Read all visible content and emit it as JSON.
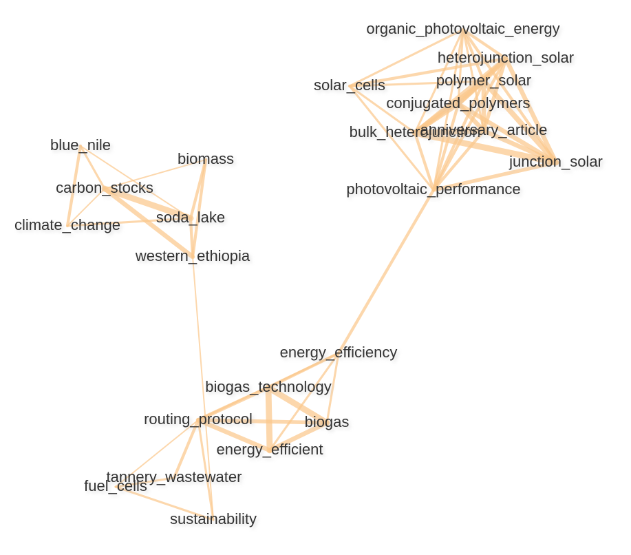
{
  "nodes": [
    {
      "id": "organic_photovoltaic_energy",
      "label": "organic_photovoltaic_energy"
    },
    {
      "id": "heterojunction_solar",
      "label": "heterojunction_solar"
    },
    {
      "id": "solar_cells",
      "label": "solar_cells"
    },
    {
      "id": "polymer_solar",
      "label": "polymer_solar"
    },
    {
      "id": "conjugated_polymers",
      "label": "conjugated_polymers"
    },
    {
      "id": "bulk_heterojunction",
      "label": "bulk_heterojunction"
    },
    {
      "id": "anniversary_article",
      "label": "anniversary_article"
    },
    {
      "id": "junction_solar",
      "label": "junction_solar"
    },
    {
      "id": "photovoltaic_performance",
      "label": "photovoltaic_performance"
    },
    {
      "id": "blue_nile",
      "label": "blue_nile"
    },
    {
      "id": "biomass",
      "label": "biomass"
    },
    {
      "id": "carbon_stocks",
      "label": "carbon_stocks"
    },
    {
      "id": "soda_lake",
      "label": "soda_lake"
    },
    {
      "id": "climate_change",
      "label": "climate_change"
    },
    {
      "id": "western_ethiopia",
      "label": "western_ethiopia"
    },
    {
      "id": "energy_efficiency",
      "label": "energy_efficiency"
    },
    {
      "id": "biogas_technology",
      "label": "biogas_technology"
    },
    {
      "id": "routing_protocol",
      "label": "routing_protocol"
    },
    {
      "id": "biogas",
      "label": "biogas"
    },
    {
      "id": "energy_efficient",
      "label": "energy_efficient"
    },
    {
      "id": "tannery_wastewater",
      "label": "tannery_wastewater"
    },
    {
      "id": "fuel_cells",
      "label": "fuel_cells"
    },
    {
      "id": "sustainability",
      "label": "sustainability"
    }
  ],
  "edges": [
    {
      "source": "organic_photovoltaic_energy",
      "target": "solar_cells",
      "weight": 2
    },
    {
      "source": "organic_photovoltaic_energy",
      "target": "heterojunction_solar",
      "weight": 3
    },
    {
      "source": "organic_photovoltaic_energy",
      "target": "polymer_solar",
      "weight": 3
    },
    {
      "source": "organic_photovoltaic_energy",
      "target": "conjugated_polymers",
      "weight": 2
    },
    {
      "source": "organic_photovoltaic_energy",
      "target": "bulk_heterojunction",
      "weight": 2
    },
    {
      "source": "organic_photovoltaic_energy",
      "target": "anniversary_article",
      "weight": 2
    },
    {
      "source": "organic_photovoltaic_energy",
      "target": "junction_solar",
      "weight": 3
    },
    {
      "source": "organic_photovoltaic_energy",
      "target": "photovoltaic_performance",
      "weight": 2
    },
    {
      "source": "solar_cells",
      "target": "heterojunction_solar",
      "weight": 3
    },
    {
      "source": "solar_cells",
      "target": "polymer_solar",
      "weight": 2
    },
    {
      "source": "solar_cells",
      "target": "photovoltaic_performance",
      "weight": 2
    },
    {
      "source": "solar_cells",
      "target": "bulk_heterojunction",
      "weight": 2
    },
    {
      "source": "heterojunction_solar",
      "target": "polymer_solar",
      "weight": 5
    },
    {
      "source": "heterojunction_solar",
      "target": "conjugated_polymers",
      "weight": 5
    },
    {
      "source": "heterojunction_solar",
      "target": "bulk_heterojunction",
      "weight": 5
    },
    {
      "source": "heterojunction_solar",
      "target": "anniversary_article",
      "weight": 4
    },
    {
      "source": "heterojunction_solar",
      "target": "junction_solar",
      "weight": 5
    },
    {
      "source": "heterojunction_solar",
      "target": "photovoltaic_performance",
      "weight": 3
    },
    {
      "source": "polymer_solar",
      "target": "conjugated_polymers",
      "weight": 5
    },
    {
      "source": "polymer_solar",
      "target": "bulk_heterojunction",
      "weight": 6
    },
    {
      "source": "polymer_solar",
      "target": "anniversary_article",
      "weight": 5
    },
    {
      "source": "polymer_solar",
      "target": "junction_solar",
      "weight": 6
    },
    {
      "source": "polymer_solar",
      "target": "photovoltaic_performance",
      "weight": 3
    },
    {
      "source": "conjugated_polymers",
      "target": "bulk_heterojunction",
      "weight": 5
    },
    {
      "source": "conjugated_polymers",
      "target": "anniversary_article",
      "weight": 5
    },
    {
      "source": "conjugated_polymers",
      "target": "junction_solar",
      "weight": 5
    },
    {
      "source": "conjugated_polymers",
      "target": "photovoltaic_performance",
      "weight": 3
    },
    {
      "source": "bulk_heterojunction",
      "target": "anniversary_article",
      "weight": 6
    },
    {
      "source": "bulk_heterojunction",
      "target": "junction_solar",
      "weight": 7
    },
    {
      "source": "bulk_heterojunction",
      "target": "photovoltaic_performance",
      "weight": 3
    },
    {
      "source": "anniversary_article",
      "target": "junction_solar",
      "weight": 5
    },
    {
      "source": "anniversary_article",
      "target": "photovoltaic_performance",
      "weight": 3
    },
    {
      "source": "junction_solar",
      "target": "photovoltaic_performance",
      "weight": 4
    },
    {
      "source": "photovoltaic_performance",
      "target": "energy_efficiency",
      "weight": 3
    },
    {
      "source": "blue_nile",
      "target": "carbon_stocks",
      "weight": 2
    },
    {
      "source": "blue_nile",
      "target": "climate_change",
      "weight": 3
    },
    {
      "source": "blue_nile",
      "target": "soda_lake",
      "weight": 1
    },
    {
      "source": "carbon_stocks",
      "target": "biomass",
      "weight": 1
    },
    {
      "source": "carbon_stocks",
      "target": "climate_change",
      "weight": 1
    },
    {
      "source": "carbon_stocks",
      "target": "soda_lake",
      "weight": 7
    },
    {
      "source": "carbon_stocks",
      "target": "western_ethiopia",
      "weight": 5
    },
    {
      "source": "biomass",
      "target": "soda_lake",
      "weight": 3
    },
    {
      "source": "biomass",
      "target": "western_ethiopia",
      "weight": 3
    },
    {
      "source": "soda_lake",
      "target": "western_ethiopia",
      "weight": 3
    },
    {
      "source": "climate_change",
      "target": "soda_lake",
      "weight": 2
    },
    {
      "source": "western_ethiopia",
      "target": "sustainability",
      "weight": 1
    },
    {
      "source": "energy_efficiency",
      "target": "biogas_technology",
      "weight": 3
    },
    {
      "source": "energy_efficiency",
      "target": "biogas",
      "weight": 2
    },
    {
      "source": "energy_efficiency",
      "target": "energy_efficient",
      "weight": 2
    },
    {
      "source": "energy_efficiency",
      "target": "routing_protocol",
      "weight": 2
    },
    {
      "source": "biogas_technology",
      "target": "biogas",
      "weight": 7
    },
    {
      "source": "biogas_technology",
      "target": "energy_efficient",
      "weight": 7
    },
    {
      "source": "biogas_technology",
      "target": "routing_protocol",
      "weight": 4
    },
    {
      "source": "routing_protocol",
      "target": "biogas",
      "weight": 4
    },
    {
      "source": "routing_protocol",
      "target": "energy_efficient",
      "weight": 5
    },
    {
      "source": "routing_protocol",
      "target": "tannery_wastewater",
      "weight": 3
    },
    {
      "source": "routing_protocol",
      "target": "fuel_cells",
      "weight": 1
    },
    {
      "source": "routing_protocol",
      "target": "sustainability",
      "weight": 2
    },
    {
      "source": "biogas",
      "target": "energy_efficient",
      "weight": 5
    },
    {
      "source": "tannery_wastewater",
      "target": "fuel_cells",
      "weight": 2
    },
    {
      "source": "fuel_cells",
      "target": "sustainability",
      "weight": 2
    }
  ]
}
